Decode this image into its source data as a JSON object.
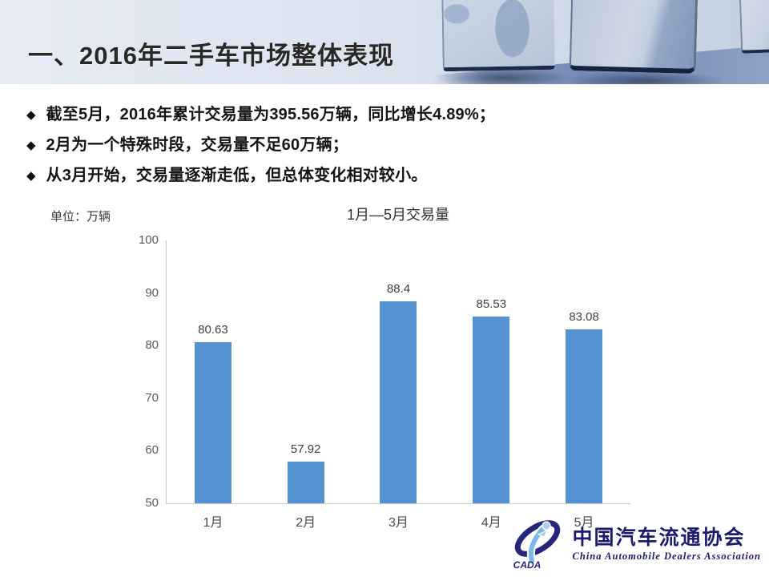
{
  "header": {
    "title": "一、2016年二手车市场整体表现"
  },
  "bullets": [
    {
      "marker": "◆",
      "text": "截至5月，2016年累计交易量为395.56万辆，同比增长4.89%；"
    },
    {
      "marker": "◆",
      "text": "2月为一个特殊时段，交易量不足60万辆；"
    },
    {
      "marker": "◆",
      "text": "从3月开始，交易量逐渐走低，但总体变化相对较小。"
    }
  ],
  "chart": {
    "unit_label": "单位：万辆",
    "title": "1月—5月交易量"
  },
  "chart_data": {
    "type": "bar",
    "categories": [
      "1月",
      "2月",
      "3月",
      "4月",
      "5月"
    ],
    "values": [
      80.63,
      57.92,
      88.4,
      85.53,
      83.08
    ],
    "title": "1月—5月交易量",
    "xlabel": "",
    "ylabel": "单位：万辆",
    "ylim": [
      50,
      100
    ],
    "ytick_step": 10,
    "bar_color": "#5593d0",
    "grid": false,
    "legend": false
  },
  "logo": {
    "acronym": "CADA",
    "name_cn": "中国汽车流通协会",
    "name_en": "China Automobile Dealers Association"
  },
  "colors": {
    "bar_blue": "#5593d0",
    "header_navy_edge": "#1c2a49",
    "logo_navy": "#1b1b70",
    "axis_gray": "#c9c9c9",
    "tick_text": "#595959"
  }
}
